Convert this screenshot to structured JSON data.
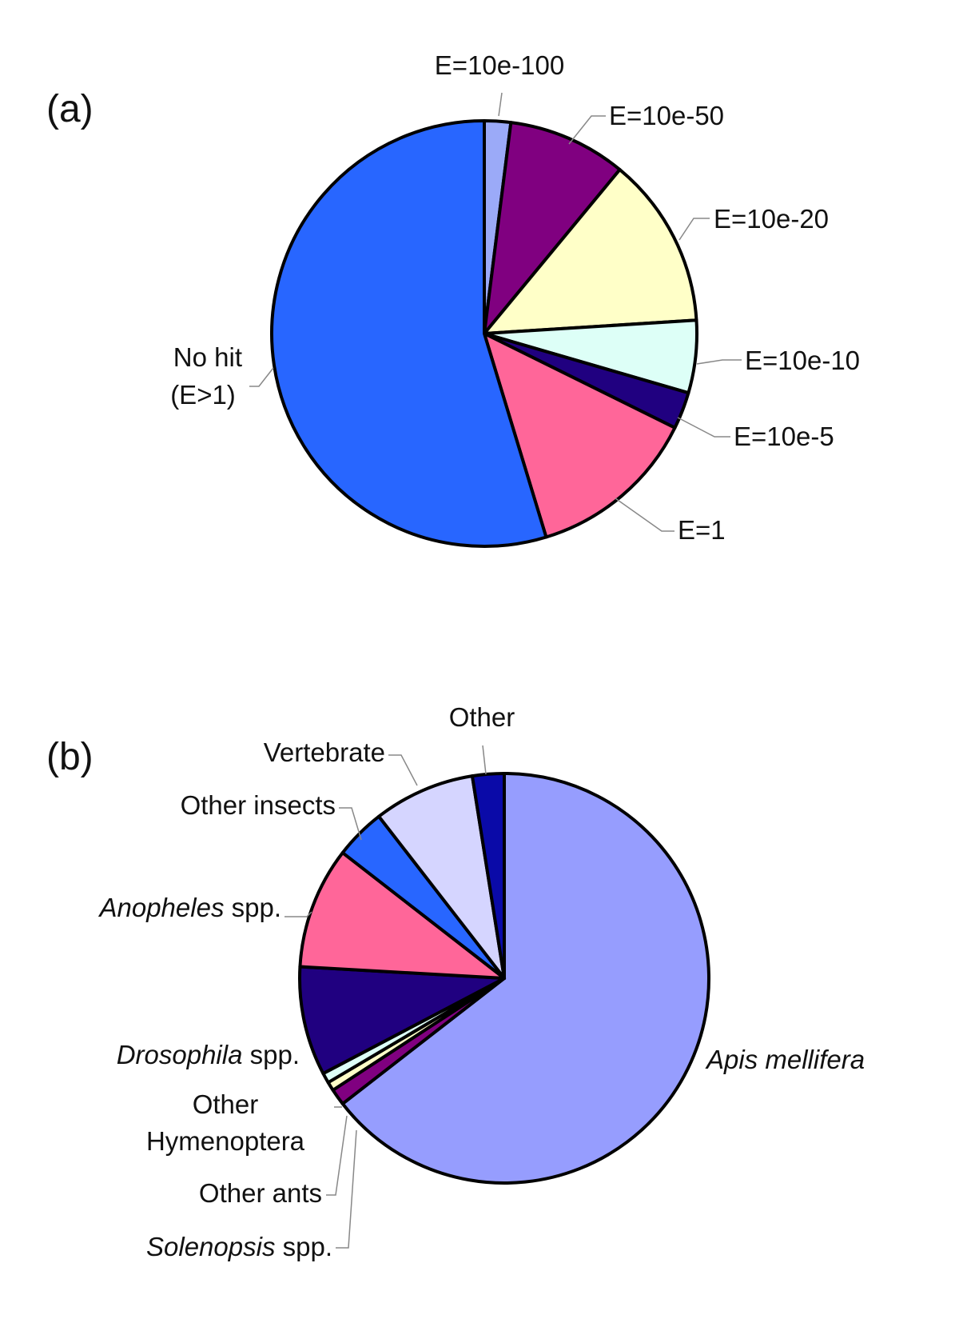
{
  "chart_data": [
    {
      "type": "pie",
      "panel_label": "(a)",
      "start_angle_deg": 0,
      "direction": "clockwise",
      "slices": [
        {
          "label": "E=10e-100",
          "value": 2.0,
          "color": "#9BAAF8"
        },
        {
          "label": "E=10e-50",
          "value": 9.0,
          "color": "#800080"
        },
        {
          "label": "E=10e-20",
          "value": 13.0,
          "color": "#FFFFC8"
        },
        {
          "label": "E=10e-10",
          "value": 5.5,
          "color": "#DDFFF7"
        },
        {
          "label": "E=10e-5",
          "value": 2.8,
          "color": "#200080"
        },
        {
          "label": "E=1",
          "value": 13.0,
          "color": "#FF6699"
        },
        {
          "label": "No hit",
          "label_line2": "(E>1)",
          "value": 54.7,
          "color": "#2866FF"
        }
      ]
    },
    {
      "type": "pie",
      "panel_label": "(b)",
      "start_angle_deg": 0,
      "direction": "clockwise",
      "slices": [
        {
          "label": "Apis mellifera",
          "italic": "Apis mellifera",
          "plain": "",
          "value": 64.5,
          "color": "#969DFE"
        },
        {
          "label": "Solenopsis spp.",
          "italic": "Solenopsis",
          "plain": " spp.",
          "value": 1.3,
          "color": "#800080"
        },
        {
          "label": "Other ants",
          "italic": "",
          "plain": "Other ants",
          "value": 0.7,
          "color": "#FFFFC8"
        },
        {
          "label": "Other Hymenoptera",
          "italic": "",
          "plain": "Other",
          "plain2": "Hymenoptera",
          "value": 0.8,
          "color": "#DDFFF7"
        },
        {
          "label": "Drosophila spp.",
          "italic": "Drosophila",
          "plain": " spp.",
          "value": 8.6,
          "color": "#200080"
        },
        {
          "label": "Anopheles spp.",
          "italic": "Anopheles",
          "plain": " spp.",
          "value": 9.6,
          "color": "#FF6699"
        },
        {
          "label": "Other insects",
          "italic": "",
          "plain": "Other insects",
          "value": 4.0,
          "color": "#2866FF"
        },
        {
          "label": "Vertebrate",
          "italic": "",
          "plain": "Vertebrate",
          "value": 8.0,
          "color": "#D5D5FF"
        },
        {
          "label": "Other",
          "italic": "",
          "plain": "Other",
          "value": 2.5,
          "color": "#0A0AA8"
        }
      ]
    }
  ]
}
